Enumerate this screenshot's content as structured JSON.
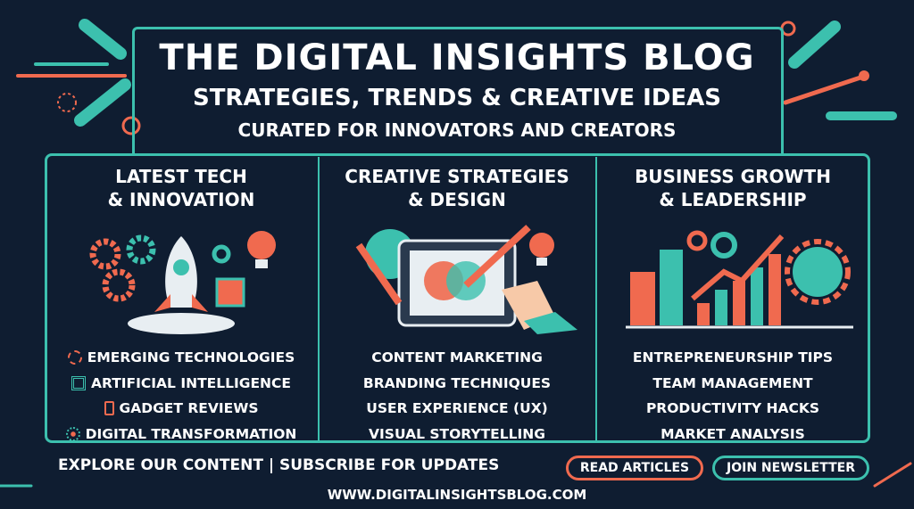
{
  "header": {
    "title": "THE DIGITAL INSIGHTS BLOG",
    "subtitle": "STRATEGIES, TRENDS & CREATIVE IDEAS",
    "tagline": "CURATED FOR INNOVATORS AND CREATORS"
  },
  "colors": {
    "background": "#0f1d31",
    "teal": "#3cc0ae",
    "orange": "#f06a4f"
  },
  "columns": [
    {
      "heading1": "LATEST TECH",
      "heading2": "& INNOVATION",
      "illustration": "rocket-gears-chip",
      "items": [
        {
          "label": "EMERGING TECHNOLOGIES",
          "icon": "gear-icon"
        },
        {
          "label": "ARTIFICIAL INTELLIGENCE",
          "icon": "chip-icon"
        },
        {
          "label": "GADGET REVIEWS",
          "icon": "phone-icon"
        },
        {
          "label": "DIGITAL TRANSFORMATION",
          "icon": "network-icon"
        }
      ]
    },
    {
      "heading1": "CREATIVE STRATEGIES",
      "heading2": "& DESIGN",
      "illustration": "tablet-drawing-hand",
      "items": [
        {
          "label": "CONTENT MARKETING"
        },
        {
          "label": "BRANDING TECHNIQUES"
        },
        {
          "label": "USER EXPERIENCE (UX)"
        },
        {
          "label": "VISUAL STORYTELLING"
        }
      ]
    },
    {
      "heading1": "BUSINESS GROWTH",
      "heading2": "& LEADERSHIP",
      "illustration": "growth-chart-team",
      "items": [
        {
          "label": "ENTREPRENEURSHIP TIPS"
        },
        {
          "label": "TEAM MANAGEMENT"
        },
        {
          "label": "PRODUCTIVITY HACKS"
        },
        {
          "label": "MARKET ANALYSIS"
        }
      ]
    }
  ],
  "footer": {
    "explore": "EXPLORE OUR CONTENT |  SUBSCRIBE FOR UPDATES",
    "read_button": "READ ARTICLES",
    "join_button": "JOIN NEWSLETTER",
    "url": "WWW.DIGITALINSIGHTSBLOG.COM"
  }
}
